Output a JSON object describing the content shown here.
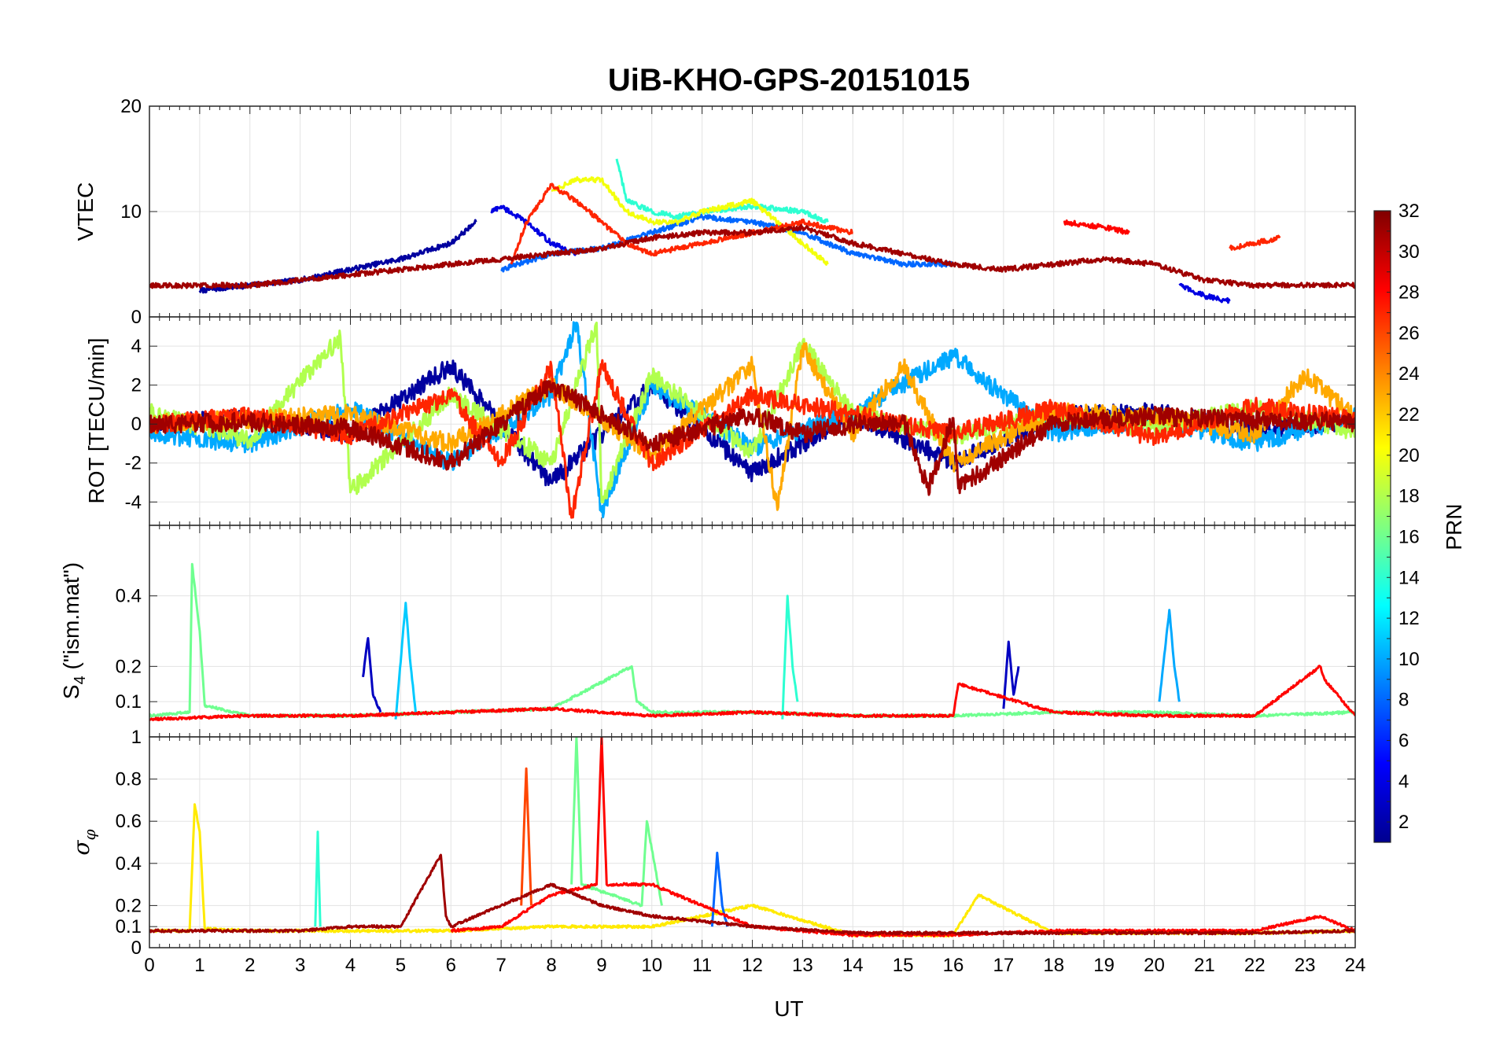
{
  "chart_data": {
    "type": "line",
    "title": "UiB-KHO-GPS-20151015",
    "xlabel": "UT",
    "xlim": [
      0,
      24
    ],
    "x_ticks": [
      "0",
      "1",
      "2",
      "3",
      "4",
      "5",
      "6",
      "7",
      "8",
      "9",
      "10",
      "11",
      "12",
      "13",
      "14",
      "15",
      "16",
      "17",
      "18",
      "19",
      "20",
      "21",
      "22",
      "23",
      "24"
    ],
    "grid": true,
    "colorbar": {
      "label": "PRN",
      "range": [
        1,
        32
      ],
      "ticks": [
        "2",
        "4",
        "6",
        "8",
        "10",
        "12",
        "14",
        "16",
        "18",
        "20",
        "22",
        "24",
        "26",
        "28",
        "30",
        "32"
      ],
      "colormap": "jet"
    },
    "panels": [
      {
        "id": "vtec",
        "ylabel": "VTEC",
        "ylim": [
          0,
          20
        ],
        "y_ticks": [
          "0",
          "10",
          "20"
        ],
        "series": [
          {
            "prn": 2,
            "x": [
              1.0,
              2,
              3,
              4,
              5,
              6,
              6.5
            ],
            "y": [
              2.5,
              3,
              3.5,
              4.5,
              5.5,
              7,
              9
            ]
          },
          {
            "prn": 4,
            "x": [
              6.8,
              7,
              7.5,
              8,
              8.5
            ],
            "y": [
              10,
              10.5,
              9,
              7,
              6
            ]
          },
          {
            "prn": 8,
            "x": [
              7,
              8,
              9,
              10,
              11,
              12,
              13,
              14,
              15,
              16
            ],
            "y": [
              4.5,
              6,
              6.5,
              8,
              9.5,
              9,
              8,
              6,
              5,
              5
            ]
          },
          {
            "prn": 14,
            "x": [
              9.3,
              9.5,
              10,
              10.5,
              11,
              12,
              13,
              13.5
            ],
            "y": [
              15,
              11,
              10,
              9.5,
              10,
              10.5,
              10,
              9
            ]
          },
          {
            "prn": 20,
            "x": [
              8,
              8.5,
              9,
              9.5,
              10,
              10.5,
              11,
              12,
              13,
              13.5
            ],
            "y": [
              12,
              13,
              13,
              10,
              9,
              9,
              10,
              11,
              7,
              5
            ]
          },
          {
            "prn": 27,
            "x": [
              7.2,
              7.5,
              8,
              8.5,
              9,
              9.5,
              10,
              11,
              12,
              13,
              14
            ],
            "y": [
              5,
              9,
              12.5,
              11,
              9,
              7,
              6,
              7,
              8,
              9,
              8
            ]
          },
          {
            "prn": 31,
            "x": [
              0,
              1,
              2,
              3,
              4,
              5,
              6,
              7,
              8,
              9,
              10,
              11,
              12,
              13,
              14,
              15,
              16,
              17,
              18,
              19,
              20,
              21,
              22,
              23,
              24
            ],
            "y": [
              3,
              3,
              3,
              3.5,
              4,
              4.5,
              5,
              5.5,
              6,
              6.5,
              7.5,
              8,
              8,
              8.5,
              7,
              6,
              5,
              4.5,
              5,
              5.5,
              5,
              3.5,
              3,
              3,
              3
            ]
          },
          {
            "prn": 28,
            "x": [
              18.2,
              19,
              19.5
            ],
            "y": [
              9,
              8.5,
              8
            ]
          },
          {
            "prn": 27,
            "x": [
              21.5,
              22,
              22.5
            ],
            "y": [
              6.5,
              7,
              7.5
            ]
          },
          {
            "prn": 4,
            "x": [
              20.5,
              21,
              21.5
            ],
            "y": [
              3,
              2,
              1.5
            ]
          }
        ]
      },
      {
        "id": "rot",
        "ylabel": "ROT [TECU/min]",
        "ylim": [
          -5.2,
          5.5
        ],
        "y_ticks": [
          "-4",
          "-2",
          "0",
          "2",
          "4"
        ],
        "series": [
          {
            "prn": 2,
            "x": [
              0,
              2,
              4,
              6,
              8,
              10,
              12,
              14,
              16,
              18,
              20,
              22,
              24
            ],
            "y": [
              0,
              0.3,
              -0.5,
              3,
              -3,
              2,
              -2.5,
              0.5,
              -2,
              0.4,
              0.6,
              -0.3,
              0.2
            ]
          },
          {
            "prn": 10,
            "x": [
              0,
              2,
              4,
              6,
              8,
              8.5,
              9,
              10,
              12,
              14,
              16,
              18,
              20,
              22,
              24
            ],
            "y": [
              -0.5,
              -1,
              0.8,
              -2,
              1.5,
              5.2,
              -4.5,
              2,
              -1.2,
              0.6,
              3.5,
              -0.5,
              0.3,
              -1,
              0.4
            ]
          },
          {
            "prn": 18,
            "x": [
              0,
              2,
              3.8,
              4,
              6,
              8,
              8.9,
              9,
              10,
              12,
              13,
              14,
              16,
              18,
              20,
              22,
              24
            ],
            "y": [
              0.6,
              -0.8,
              4.5,
              -3.5,
              1.5,
              -2,
              5.2,
              -4,
              2.5,
              -1.5,
              4.2,
              0.5,
              -0.6,
              0.4,
              -0.2,
              0.8,
              -0.4
            ]
          },
          {
            "prn": 23,
            "x": [
              0,
              4,
              6,
              8,
              10,
              12,
              12.5,
              13,
              14,
              15,
              16,
              18,
              20,
              22,
              23,
              24
            ],
            "y": [
              0,
              0.5,
              -1,
              2,
              -1.5,
              3,
              -4.4,
              4,
              -0.5,
              3,
              -2,
              0.6,
              0.4,
              -0.5,
              2.5,
              0.3
            ]
          },
          {
            "prn": 27,
            "x": [
              0,
              2,
              4,
              6,
              7,
              8,
              8.4,
              9,
              10,
              12,
              14,
              16,
              18,
              20,
              22,
              24
            ],
            "y": [
              0,
              0.4,
              -0.6,
              1.5,
              -2,
              3,
              -4.8,
              3,
              -2,
              1.5,
              0.5,
              -0.5,
              0.8,
              -0.7,
              0.9,
              0.2
            ]
          },
          {
            "prn": 31,
            "x": [
              0,
              2,
              4,
              6,
              8,
              10,
              12,
              13,
              14,
              15,
              15.5,
              16,
              16.1,
              18,
              20,
              22,
              24
            ],
            "y": [
              0,
              0.1,
              -0.2,
              -2,
              2,
              -1,
              0.5,
              -0.5,
              0,
              0.2,
              -3.3,
              0.3,
              -3.3,
              0.1,
              0.4,
              0.2,
              0.1
            ]
          }
        ]
      },
      {
        "id": "s4",
        "ylabel": "S4 (\"ism.mat\")",
        "ylim": [
          0,
          0.6
        ],
        "y_ticks": [
          "0.1",
          "0.2",
          "0.4"
        ],
        "series": [
          {
            "prn": 16,
            "x": [
              0,
              0.8,
              0.85,
              1,
              1.1,
              2,
              4,
              6,
              8,
              9.6,
              9.7,
              10,
              12,
              14,
              16,
              18,
              20,
              22,
              24
            ],
            "y": [
              0.06,
              0.07,
              0.49,
              0.3,
              0.09,
              0.06,
              0.06,
              0.07,
              0.08,
              0.2,
              0.1,
              0.07,
              0.07,
              0.06,
              0.06,
              0.07,
              0.07,
              0.06,
              0.07
            ]
          },
          {
            "prn": 11,
            "x": [
              4.9,
              5.1,
              5.2,
              5.3
            ],
            "y": [
              0.05,
              0.38,
              0.2,
              0.07
            ]
          },
          {
            "prn": 3,
            "x": [
              4.25,
              4.35,
              4.45,
              4.6
            ],
            "y": [
              0.17,
              0.28,
              0.12,
              0.07
            ]
          },
          {
            "prn": 14,
            "x": [
              12.6,
              12.7,
              12.8,
              12.9
            ],
            "y": [
              0.05,
              0.4,
              0.2,
              0.1
            ]
          },
          {
            "prn": 3,
            "x": [
              17.0,
              17.1,
              17.2,
              17.3
            ],
            "y": [
              0.08,
              0.27,
              0.12,
              0.2
            ]
          },
          {
            "prn": 10,
            "x": [
              20.1,
              20.3,
              20.4,
              20.5
            ],
            "y": [
              0.1,
              0.36,
              0.2,
              0.1
            ]
          },
          {
            "prn": 28,
            "x": [
              0,
              2,
              4,
              6,
              8,
              10,
              12,
              14,
              16,
              16.1,
              18,
              20,
              22,
              23.3,
              23.4,
              24
            ],
            "y": [
              0.05,
              0.06,
              0.06,
              0.07,
              0.08,
              0.06,
              0.07,
              0.06,
              0.06,
              0.15,
              0.07,
              0.06,
              0.06,
              0.2,
              0.16,
              0.06
            ]
          }
        ]
      },
      {
        "id": "sigma_phi",
        "ylabel": "σφ",
        "ylim": [
          0,
          1
        ],
        "y_ticks": [
          "0",
          "0.1",
          "0.2",
          "0.4",
          "0.6",
          "0.8",
          "1"
        ],
        "series": [
          {
            "prn": 21,
            "x": [
              0,
              0.8,
              0.9,
              1,
              1.1,
              2,
              4,
              6,
              8,
              10,
              12,
              14,
              16,
              16.5,
              18,
              20,
              22,
              24
            ],
            "y": [
              0.08,
              0.08,
              0.68,
              0.55,
              0.09,
              0.08,
              0.08,
              0.08,
              0.1,
              0.1,
              0.2,
              0.06,
              0.06,
              0.25,
              0.07,
              0.07,
              0.07,
              0.08
            ]
          },
          {
            "prn": 14,
            "x": [
              3.3,
              3.35,
              3.4
            ],
            "y": [
              0.1,
              0.55,
              0.1
            ]
          },
          {
            "prn": 16,
            "x": [
              8.4,
              8.5,
              8.6,
              9.8,
              9.9,
              10.2
            ],
            "y": [
              0.3,
              1,
              0.3,
              0.2,
              0.6,
              0.2
            ]
          },
          {
            "prn": 8,
            "x": [
              11.2,
              11.3,
              11.4,
              11.5
            ],
            "y": [
              0.1,
              0.45,
              0.2,
              0.1
            ]
          },
          {
            "prn": 26,
            "x": [
              7.4,
              7.5,
              7.6
            ],
            "y": [
              0.2,
              0.85,
              0.2
            ]
          },
          {
            "prn": 28,
            "x": [
              6,
              7,
              8,
              8.9,
              9,
              9.1,
              10,
              11,
              12,
              13,
              14,
              16,
              18,
              20,
              22,
              23.3,
              24
            ],
            "y": [
              0.08,
              0.1,
              0.25,
              0.3,
              1,
              0.3,
              0.3,
              0.2,
              0.1,
              0.08,
              0.06,
              0.06,
              0.08,
              0.08,
              0.08,
              0.15,
              0.08
            ]
          },
          {
            "prn": 31,
            "x": [
              0,
              3,
              4,
              5,
              5.8,
              5.9,
              6,
              7,
              8,
              9,
              10,
              12,
              14,
              16,
              18,
              20,
              22,
              24
            ],
            "y": [
              0.08,
              0.08,
              0.1,
              0.1,
              0.44,
              0.15,
              0.1,
              0.2,
              0.3,
              0.2,
              0.15,
              0.1,
              0.07,
              0.07,
              0.07,
              0.07,
              0.07,
              0.08
            ]
          }
        ]
      }
    ]
  }
}
